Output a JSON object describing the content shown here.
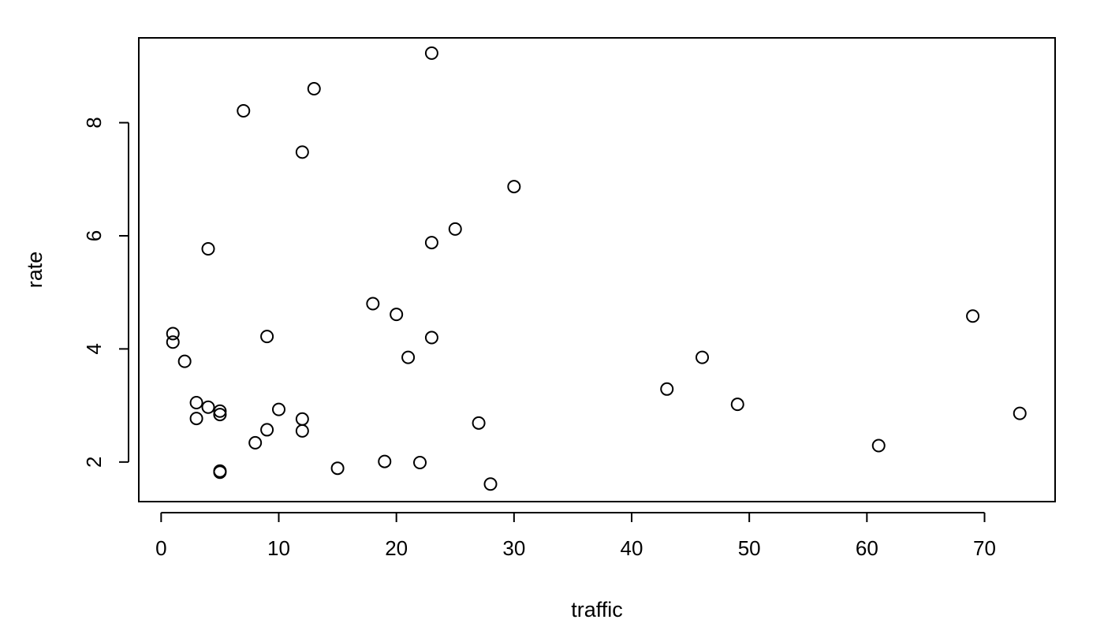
{
  "chart_data": {
    "type": "scatter",
    "title": "",
    "xlabel": "traffic",
    "ylabel": "rate",
    "xlim": [
      -1.9,
      76
    ],
    "ylim": [
      1.3,
      9.5
    ],
    "x_ticks": [
      0,
      10,
      20,
      30,
      40,
      50,
      60,
      70
    ],
    "y_ticks": [
      2,
      4,
      6,
      8
    ],
    "grid": false,
    "legend": "none",
    "points": [
      {
        "x": 1,
        "y": 4.27
      },
      {
        "x": 1,
        "y": 4.12
      },
      {
        "x": 2,
        "y": 3.78
      },
      {
        "x": 3,
        "y": 3.05
      },
      {
        "x": 3,
        "y": 2.77
      },
      {
        "x": 4,
        "y": 2.97
      },
      {
        "x": 4,
        "y": 5.77
      },
      {
        "x": 5,
        "y": 2.9
      },
      {
        "x": 5,
        "y": 2.84
      },
      {
        "x": 5,
        "y": 1.84
      },
      {
        "x": 5,
        "y": 1.82
      },
      {
        "x": 7,
        "y": 8.21
      },
      {
        "x": 8,
        "y": 2.34
      },
      {
        "x": 9,
        "y": 2.57
      },
      {
        "x": 9,
        "y": 4.22
      },
      {
        "x": 10,
        "y": 2.93
      },
      {
        "x": 12,
        "y": 7.48
      },
      {
        "x": 12,
        "y": 2.76
      },
      {
        "x": 12,
        "y": 2.55
      },
      {
        "x": 13,
        "y": 8.6
      },
      {
        "x": 15,
        "y": 1.89
      },
      {
        "x": 18,
        "y": 4.8
      },
      {
        "x": 19,
        "y": 2.01
      },
      {
        "x": 20,
        "y": 4.61
      },
      {
        "x": 21,
        "y": 3.85
      },
      {
        "x": 22,
        "y": 1.99
      },
      {
        "x": 23,
        "y": 9.23
      },
      {
        "x": 23,
        "y": 5.88
      },
      {
        "x": 23,
        "y": 4.2
      },
      {
        "x": 25,
        "y": 6.12
      },
      {
        "x": 27,
        "y": 2.69
      },
      {
        "x": 28,
        "y": 1.61
      },
      {
        "x": 30,
        "y": 6.87
      },
      {
        "x": 43,
        "y": 3.29
      },
      {
        "x": 46,
        "y": 3.85
      },
      {
        "x": 49,
        "y": 3.02
      },
      {
        "x": 61,
        "y": 2.29
      },
      {
        "x": 69,
        "y": 4.58
      },
      {
        "x": 73,
        "y": 2.86
      }
    ]
  }
}
